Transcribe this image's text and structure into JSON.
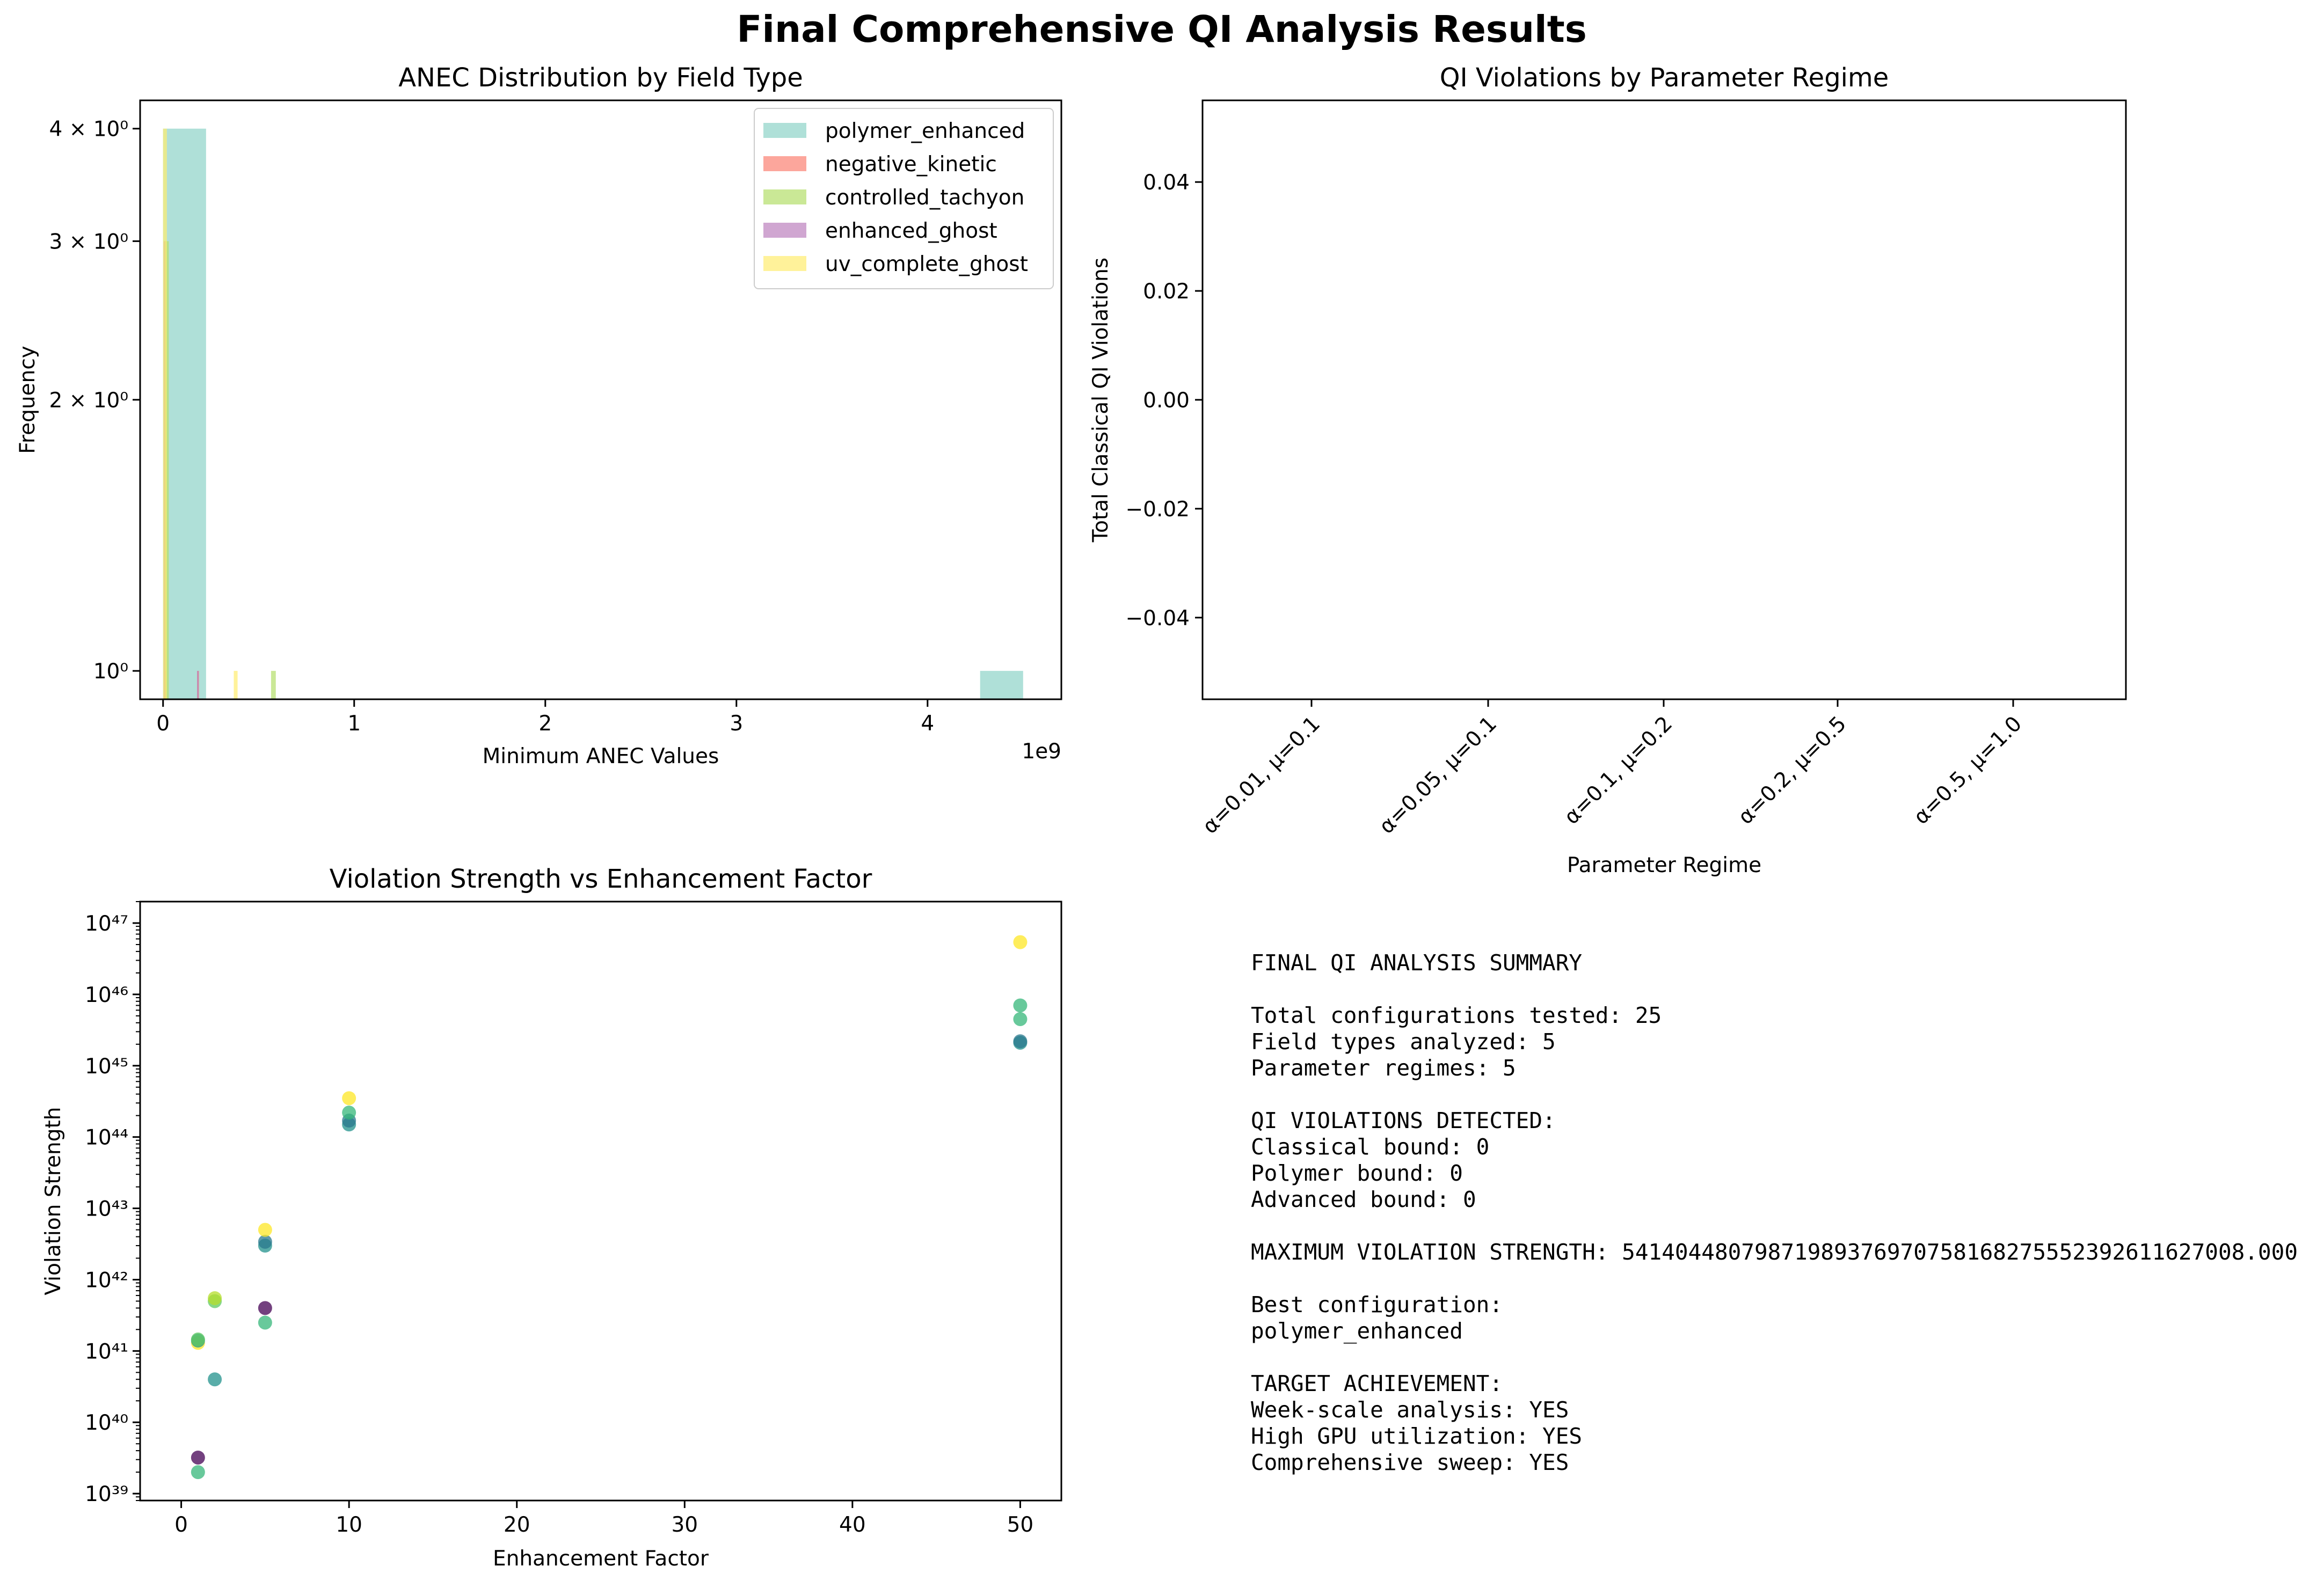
{
  "figure": {
    "title": "Final Comprehensive QI Analysis Results"
  },
  "chart_data": [
    {
      "type": "histogram",
      "title": "ANEC Distribution by Field Type",
      "xlabel": "Minimum ANEC Values",
      "ylabel": "Frequency",
      "x_offset_label": "1e9",
      "x_scale_factor": 1000000000,
      "xlim": [
        -0.12,
        4.7
      ],
      "ylim": [
        0.93,
        4.3
      ],
      "yscale": "log",
      "x_ticks": [
        0,
        1,
        2,
        3,
        4
      ],
      "x_tick_labels": [
        "0",
        "1",
        "2",
        "3",
        "4"
      ],
      "y_ticks": [
        1,
        2,
        3,
        4
      ],
      "y_tick_labels": [
        "10⁰",
        "2 × 10⁰",
        "3 × 10⁰",
        "4 × 10⁰"
      ],
      "legend_position": "top-right",
      "series": [
        {
          "name": "polymer_enhanced",
          "color": "#8dd3c7",
          "bins": [
            {
              "x0": 0.0,
              "x1": 0.225,
              "count": 4
            },
            {
              "x0": 4.275,
              "x1": 4.5,
              "count": 1
            }
          ]
        },
        {
          "name": "negative_kinetic",
          "color": "#fb8072",
          "bins": [
            {
              "x0": 0.004,
              "x1": 0.014,
              "count": 1
            },
            {
              "x0": 0.178,
              "x1": 0.188,
              "count": 1
            }
          ]
        },
        {
          "name": "controlled_tachyon",
          "color": "#b3de69",
          "bins": [
            {
              "x0": 0.004,
              "x1": 0.03,
              "count": 3
            },
            {
              "x0": 0.565,
              "x1": 0.59,
              "count": 1
            }
          ]
        },
        {
          "name": "enhanced_ghost",
          "color": "#bc80bd",
          "bins": [
            {
              "x0": 0.003,
              "x1": 0.012,
              "count": 3
            },
            {
              "x0": 0.178,
              "x1": 0.186,
              "count": 1
            }
          ]
        },
        {
          "name": "uv_complete_ghost",
          "color": "#ffed6f",
          "bins": [
            {
              "x0": 0.0,
              "x1": 0.02,
              "count": 4
            },
            {
              "x0": 0.37,
              "x1": 0.39,
              "count": 1
            }
          ]
        }
      ]
    },
    {
      "type": "bar",
      "title": "QI Violations by Parameter Regime",
      "xlabel": "Parameter Regime",
      "ylabel": "Total Classical QI Violations",
      "categories": [
        "α=0.01, μ=0.1",
        "α=0.05, μ=0.1",
        "α=0.1, μ=0.2",
        "α=0.2, μ=0.5",
        "α=0.5, μ=1.0"
      ],
      "values": [
        0,
        0,
        0,
        0,
        0
      ],
      "ylim": [
        -0.055,
        0.055
      ],
      "y_ticks": [
        -0.04,
        -0.02,
        0.0,
        0.02,
        0.04
      ],
      "y_tick_labels": [
        "−0.04",
        "−0.02",
        "0.00",
        "0.02",
        "0.04"
      ]
    },
    {
      "type": "scatter",
      "title": "Violation Strength vs Enhancement Factor",
      "xlabel": "Enhancement Factor",
      "ylabel": "Violation Strength",
      "yscale": "log",
      "xlim": [
        -2.45,
        52.45
      ],
      "ylim": [
        8e+38,
        2e+47
      ],
      "x_ticks": [
        0,
        10,
        20,
        30,
        40,
        50
      ],
      "x_tick_labels": [
        "0",
        "10",
        "20",
        "30",
        "40",
        "50"
      ],
      "y_tick_exponents": [
        39,
        40,
        41,
        42,
        43,
        44,
        45,
        46,
        47
      ],
      "y_tick_labels": [
        "10³⁹",
        "10⁴⁰",
        "10⁴¹",
        "10⁴²",
        "10⁴³",
        "10⁴⁴",
        "10⁴⁵",
        "10⁴⁶",
        "10⁴⁷"
      ],
      "points": [
        {
          "x": 1,
          "y": 2e+39,
          "color": "#35b779"
        },
        {
          "x": 1,
          "y": 3.2e+39,
          "color": "#440154"
        },
        {
          "x": 1,
          "y": 1.3e+41,
          "color": "#fde725"
        },
        {
          "x": 1,
          "y": 1.4e+41,
          "color": "#21918c"
        },
        {
          "x": 1,
          "y": 1.45e+41,
          "color": "#5ec962"
        },
        {
          "x": 2,
          "y": 4e+40,
          "color": "#21918c"
        },
        {
          "x": 2,
          "y": 5e+41,
          "color": "#5ec962"
        },
        {
          "x": 2,
          "y": 5.5e+41,
          "color": "#b5de2b"
        },
        {
          "x": 5,
          "y": 2.5e+41,
          "color": "#35b779"
        },
        {
          "x": 5,
          "y": 4e+41,
          "color": "#440154"
        },
        {
          "x": 5,
          "y": 3e+42,
          "color": "#21918c"
        },
        {
          "x": 5,
          "y": 3.4e+42,
          "color": "#2a788e"
        },
        {
          "x": 5,
          "y": 5e+42,
          "color": "#fde725"
        },
        {
          "x": 10,
          "y": 1.5e+44,
          "color": "#21918c"
        },
        {
          "x": 10,
          "y": 1.7e+44,
          "color": "#2a788e"
        },
        {
          "x": 10,
          "y": 2.2e+44,
          "color": "#35b779"
        },
        {
          "x": 10,
          "y": 3.5e+44,
          "color": "#fde725"
        },
        {
          "x": 50,
          "y": 2.1e+45,
          "color": "#21918c"
        },
        {
          "x": 50,
          "y": 2.2e+45,
          "color": "#2a788e"
        },
        {
          "x": 50,
          "y": 4.5e+45,
          "color": "#35b779"
        },
        {
          "x": 50,
          "y": 7e+45,
          "color": "#35b779"
        },
        {
          "x": 50,
          "y": 5.4e+46,
          "color": "#fde725"
        }
      ]
    }
  ],
  "summary": {
    "lines": [
      "FINAL QI ANALYSIS SUMMARY",
      "",
      "Total configurations tested: 25",
      "Field types analyzed: 5",
      "Parameter regimes: 5",
      "",
      "QI VIOLATIONS DETECTED:",
      "Classical bound: 0",
      "Polymer bound: 0",
      "Advanced bound: 0",
      "",
      "MAXIMUM VIOLATION STRENGTH: 54140448079871989376970758168275552392611627008.000",
      "",
      "Best configuration:",
      "polymer_enhanced",
      "",
      "TARGET ACHIEVEMENT:",
      "Week-scale analysis: YES",
      "High GPU utilization: YES",
      "Comprehensive sweep: YES"
    ]
  }
}
